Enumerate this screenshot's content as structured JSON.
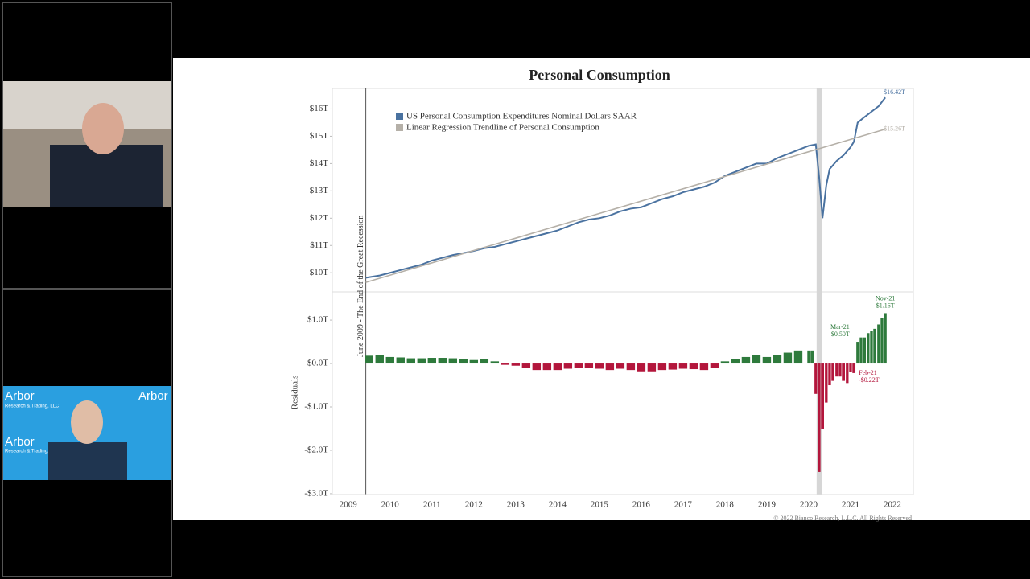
{
  "video": {
    "logo": "Arbor",
    "logo_sub": "Research & Trading, LLC"
  },
  "slide": {
    "title": "Personal Consumption",
    "copyright": "© 2022 Bianco Research, L.L.C. All Rights Reserved",
    "recession": {
      "x": 2009.42,
      "label": "June 2009 - The End of the Great Recession"
    },
    "shade": [
      2020.19,
      2020.32
    ]
  },
  "chart_data": [
    {
      "type": "line",
      "xlim": [
        2008.62,
        2022.5
      ],
      "ylim": [
        9.3,
        16.75
      ],
      "yticks": [
        {
          "value": 10,
          "label": "$10T"
        },
        {
          "value": 11,
          "label": "$11T"
        },
        {
          "value": 12,
          "label": "$12T"
        },
        {
          "value": 13,
          "label": "$13T"
        },
        {
          "value": 14,
          "label": "$14T"
        },
        {
          "value": 15,
          "label": "$15T"
        },
        {
          "value": 16,
          "label": "$16T"
        }
      ],
      "series": [
        {
          "name": "US Personal Consumption Expenditures Nominal Dollars SAAR",
          "color": "#4a72a0",
          "x": [
            2009.42,
            2009.75,
            2010.0,
            2010.25,
            2010.5,
            2010.75,
            2011.0,
            2011.25,
            2011.5,
            2011.75,
            2012.0,
            2012.25,
            2012.5,
            2012.75,
            2013.0,
            2013.25,
            2013.5,
            2013.75,
            2014.0,
            2014.25,
            2014.5,
            2014.75,
            2015.0,
            2015.25,
            2015.5,
            2015.75,
            2016.0,
            2016.25,
            2016.5,
            2016.75,
            2017.0,
            2017.25,
            2017.5,
            2017.75,
            2018.0,
            2018.25,
            2018.5,
            2018.75,
            2019.0,
            2019.25,
            2019.5,
            2019.75,
            2020.0,
            2020.17,
            2020.25,
            2020.33,
            2020.42,
            2020.5,
            2020.67,
            2020.83,
            2021.0,
            2021.08,
            2021.17,
            2021.33,
            2021.5,
            2021.67,
            2021.83
          ],
          "values": [
            9.82,
            9.9,
            10.0,
            10.1,
            10.2,
            10.3,
            10.45,
            10.55,
            10.65,
            10.72,
            10.8,
            10.9,
            10.95,
            11.05,
            11.15,
            11.25,
            11.35,
            11.45,
            11.55,
            11.7,
            11.85,
            11.95,
            12.0,
            12.1,
            12.25,
            12.35,
            12.4,
            12.55,
            12.7,
            12.8,
            12.95,
            13.05,
            13.15,
            13.3,
            13.55,
            13.7,
            13.85,
            14.0,
            14.0,
            14.2,
            14.35,
            14.5,
            14.65,
            14.7,
            13.5,
            12.0,
            13.2,
            13.8,
            14.1,
            14.3,
            14.6,
            14.8,
            15.5,
            15.7,
            15.9,
            16.1,
            16.42
          ],
          "value_labels": [
            null,
            null,
            null,
            null,
            null,
            null,
            null,
            null,
            null,
            null,
            null,
            null,
            null,
            null,
            null,
            null,
            null,
            null,
            null,
            null,
            null,
            null,
            null,
            null,
            null,
            null,
            null,
            null,
            null,
            null,
            null,
            null,
            null,
            null,
            null,
            null,
            null,
            null,
            null,
            null,
            null,
            null,
            null,
            null,
            null,
            null,
            null,
            null,
            null,
            null,
            null,
            null,
            null,
            null,
            null,
            null,
            "$16.42T"
          ]
        },
        {
          "name": "Linear Regression Trendline of Personal Consumption",
          "color": "#b5b0a8",
          "x": [
            2009.42,
            2021.83
          ],
          "values": [
            9.65,
            15.26
          ],
          "value_labels": [
            null,
            "$15.26T"
          ]
        }
      ]
    },
    {
      "type": "bar",
      "y_label": "Residuals",
      "xlim": [
        2008.62,
        2022.5
      ],
      "ylim": [
        -3.02,
        1.65
      ],
      "xticks": [
        2009,
        2010,
        2011,
        2012,
        2013,
        2014,
        2015,
        2016,
        2017,
        2018,
        2019,
        2020,
        2021,
        2022
      ],
      "yticks": [
        {
          "value": 1,
          "label": "$1.0T"
        },
        {
          "value": 0,
          "label": "$0.0T"
        },
        {
          "value": -1,
          "label": "-$1.0T"
        },
        {
          "value": -2,
          "label": "-$2.0T"
        },
        {
          "value": -3,
          "label": "-$3.0T"
        }
      ],
      "positive_color": "#2e7a3c",
      "negative_color": "#b3163c",
      "x": [
        2009.5,
        2009.75,
        2010.0,
        2010.25,
        2010.5,
        2010.75,
        2011.0,
        2011.25,
        2011.5,
        2011.75,
        2012.0,
        2012.25,
        2012.5,
        2012.75,
        2013.0,
        2013.25,
        2013.5,
        2013.75,
        2014.0,
        2014.25,
        2014.5,
        2014.75,
        2015.0,
        2015.25,
        2015.5,
        2015.75,
        2016.0,
        2016.25,
        2016.5,
        2016.75,
        2017.0,
        2017.25,
        2017.5,
        2017.75,
        2018.0,
        2018.25,
        2018.5,
        2018.75,
        2019.0,
        2019.25,
        2019.5,
        2019.75,
        2020.0,
        2020.08,
        2020.17,
        2020.25,
        2020.33,
        2020.42,
        2020.5,
        2020.58,
        2020.67,
        2020.75,
        2020.83,
        2020.92,
        2021.0,
        2021.08,
        2021.17,
        2021.25,
        2021.33,
        2021.42,
        2021.5,
        2021.58,
        2021.67,
        2021.75,
        2021.83
      ],
      "values": [
        0.18,
        0.2,
        0.15,
        0.14,
        0.12,
        0.12,
        0.13,
        0.13,
        0.12,
        0.1,
        0.08,
        0.1,
        0.05,
        -0.03,
        -0.05,
        -0.1,
        -0.15,
        -0.15,
        -0.15,
        -0.12,
        -0.1,
        -0.1,
        -0.12,
        -0.15,
        -0.12,
        -0.15,
        -0.18,
        -0.18,
        -0.15,
        -0.14,
        -0.12,
        -0.13,
        -0.15,
        -0.1,
        0.05,
        0.1,
        0.15,
        0.2,
        0.15,
        0.2,
        0.25,
        0.3,
        0.3,
        0.3,
        -0.7,
        -2.5,
        -1.5,
        -0.9,
        -0.5,
        -0.4,
        -0.3,
        -0.3,
        -0.4,
        -0.45,
        -0.2,
        -0.22,
        0.5,
        0.6,
        0.6,
        0.7,
        0.75,
        0.8,
        0.9,
        1.05,
        1.16
      ],
      "value_labels": [
        null,
        null,
        null,
        null,
        null,
        null,
        null,
        null,
        null,
        null,
        null,
        null,
        null,
        null,
        null,
        null,
        null,
        null,
        null,
        null,
        null,
        null,
        null,
        null,
        null,
        null,
        null,
        null,
        null,
        null,
        null,
        null,
        null,
        null,
        null,
        null,
        null,
        null,
        null,
        null,
        null,
        null,
        null,
        null,
        null,
        null,
        null,
        null,
        null,
        null,
        null,
        null,
        null,
        null,
        null,
        [
          "Feb-21",
          "-$0.22T"
        ],
        [
          "Mar-21",
          "$0.50T"
        ],
        null,
        null,
        null,
        null,
        null,
        null,
        null,
        [
          "Nov-21",
          "$1.16T"
        ]
      ]
    }
  ]
}
